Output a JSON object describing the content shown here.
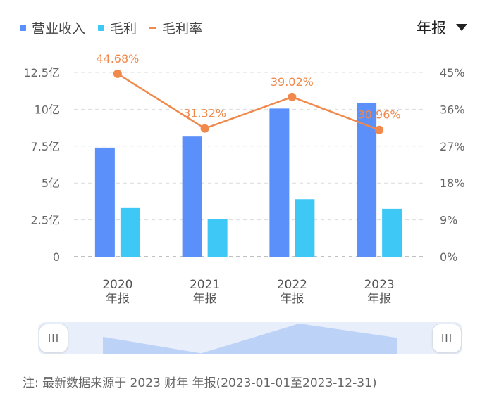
{
  "legend": {
    "revenue": "营业收入",
    "gross_profit": "毛利",
    "gross_margin": "毛利率"
  },
  "period_selector": {
    "label": "年报"
  },
  "colors": {
    "revenue": "#5b8ff9",
    "gross_profit": "#3dc8f5",
    "gross_margin": "#f0894b",
    "slider_area": "#bcd3f7"
  },
  "chart_data": {
    "type": "bar",
    "categories": [
      "2020\n年报",
      "2021\n年报",
      "2022\n年报",
      "2023\n年报"
    ],
    "series": [
      {
        "name": "营业收入",
        "type": "bar",
        "axis": "left",
        "values": [
          7.4,
          8.15,
          10.05,
          10.45
        ]
      },
      {
        "name": "毛利",
        "type": "bar",
        "axis": "left",
        "values": [
          3.3,
          2.55,
          3.9,
          3.25
        ]
      },
      {
        "name": "毛利率",
        "type": "line",
        "axis": "right",
        "values": [
          44.68,
          31.32,
          39.02,
          30.96
        ],
        "labels": [
          "44.68%",
          "31.32%",
          "39.02%",
          "30.96%"
        ]
      }
    ],
    "y_left": {
      "ticks": [
        "0",
        "2.5亿",
        "5亿",
        "7.5亿",
        "10亿",
        "12.5亿"
      ],
      "ylim": [
        0,
        12.5
      ]
    },
    "y_right": {
      "ticks": [
        "0%",
        "9%",
        "18%",
        "27%",
        "36%",
        "45%"
      ],
      "ylim": [
        0,
        45
      ]
    },
    "grid": true,
    "legend_position": "top-left"
  },
  "zoom_slider": {
    "left_handle": "III",
    "right_handle": "III"
  },
  "footnote": "注: 最新数据来源于 2023 财年 年报(2023-01-01至2023-12-31)"
}
